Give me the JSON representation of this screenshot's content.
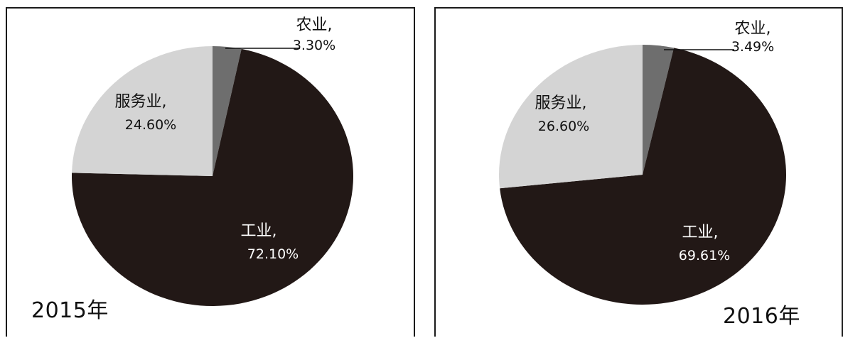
{
  "chart_data": [
    {
      "type": "pie",
      "year_label": "2015年",
      "slices": [
        {
          "name": "农业,",
          "value_label": "3.30%",
          "value": 3.3,
          "color": "#6e6e6e"
        },
        {
          "name": "工业,",
          "value_label": "72.10%",
          "value": 72.1,
          "color": "#221816"
        },
        {
          "name": "服务业,",
          "value_label": "24.60%",
          "value": 24.6,
          "color": "#d4d4d4"
        }
      ]
    },
    {
      "type": "pie",
      "year_label": "2016年",
      "slices": [
        {
          "name": "农业,",
          "value_label": "3.49%",
          "value": 3.49,
          "color": "#6e6e6e"
        },
        {
          "name": "工业,",
          "value_label": "69.61%",
          "value": 69.61,
          "color": "#221816"
        },
        {
          "name": "服务业,",
          "value_label": "26.60%",
          "value": 26.6,
          "color": "#d4d4d4"
        }
      ]
    }
  ]
}
